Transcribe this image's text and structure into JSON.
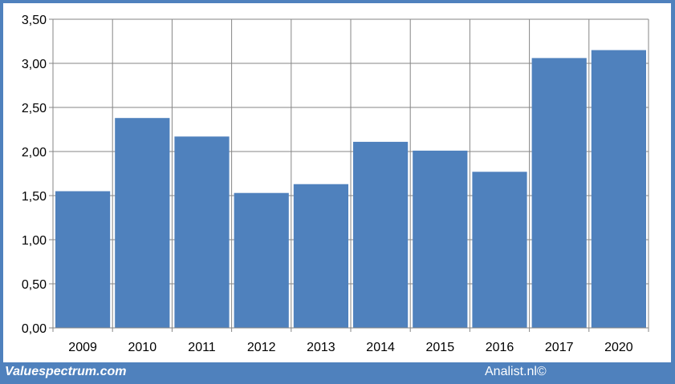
{
  "chart_data": {
    "type": "bar",
    "categories": [
      "2009",
      "2010",
      "2011",
      "2012",
      "2013",
      "2014",
      "2015",
      "2016",
      "2017",
      "2020"
    ],
    "values": [
      1.55,
      2.38,
      2.17,
      1.53,
      1.63,
      2.11,
      2.01,
      1.77,
      3.06,
      3.15
    ],
    "ylim": [
      0,
      3.5
    ],
    "yticks": [
      "0,00",
      "0,50",
      "1,00",
      "1,50",
      "2,00",
      "2,50",
      "3,00",
      "3,50"
    ],
    "grid": true,
    "bar_color": "#4f81bd"
  },
  "footer": {
    "left": "Valuespectrum.com",
    "right": "Analist.nl©"
  },
  "colors": {
    "frame": "#4f81bd",
    "bar": "#4f81bd",
    "grid": "#868686"
  }
}
